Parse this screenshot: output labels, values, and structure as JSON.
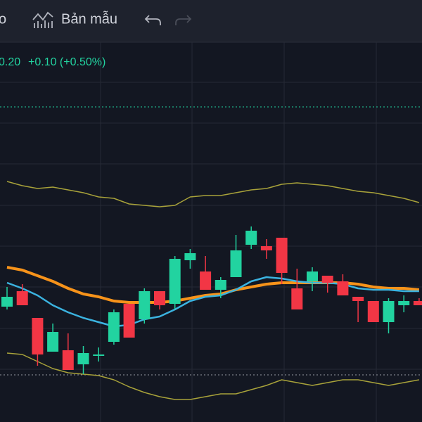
{
  "toolbar": {
    "partial_label": "o",
    "template": "Bản mẫu"
  },
  "legend": {
    "price": "0.20",
    "change": "+0.10 (+0.50%)"
  },
  "chart_data": {
    "type": "candlestick",
    "ylim": [
      19,
      21.7
    ],
    "up_color": "#22d3a0",
    "down_color": "#f23645",
    "open": [
      19.82,
      19.93,
      19.74,
      19.5,
      19.51,
      19.41,
      19.47,
      19.57,
      19.84,
      19.73,
      19.93,
      19.84,
      20.15,
      20.07,
      19.94,
      20.03,
      20.26,
      20.25,
      20.31,
      19.95,
      20.0,
      20.04,
      20.0,
      19.89,
      19.86,
      19.71,
      19.83,
      19.86
    ],
    "high": [
      19.96,
      19.98,
      19.74,
      19.7,
      19.63,
      19.54,
      19.53,
      19.8,
      19.84,
      19.95,
      19.93,
      20.18,
      20.23,
      20.18,
      20.03,
      20.33,
      20.39,
      20.3,
      20.31,
      20.09,
      20.1,
      20.04,
      20.05,
      19.89,
      19.86,
      19.88,
      19.9,
      19.88
    ],
    "low": [
      19.8,
      19.83,
      19.4,
      19.5,
      19.37,
      19.34,
      19.43,
      19.55,
      19.6,
      19.7,
      19.8,
      19.8,
      20.09,
      19.94,
      19.88,
      20.03,
      20.23,
      20.16,
      19.98,
      19.8,
      19.93,
      19.92,
      19.9,
      19.71,
      19.71,
      19.63,
      19.78,
      19.83
    ],
    "close": [
      19.89,
      19.83,
      19.48,
      19.64,
      19.37,
      19.49,
      19.48,
      19.78,
      19.6,
      19.93,
      19.83,
      20.16,
      20.2,
      19.94,
      20.01,
      20.22,
      20.36,
      20.22,
      20.06,
      19.8,
      20.07,
      19.99,
      19.9,
      19.86,
      19.71,
      19.86,
      19.86,
      19.83
    ],
    "series": [
      {
        "color": "#a8a23a",
        "width": 1.5,
        "values": [
          20.71,
          20.68,
          20.66,
          20.67,
          20.65,
          20.63,
          20.6,
          20.59,
          20.55,
          20.54,
          20.53,
          20.54,
          20.6,
          20.61,
          20.61,
          20.63,
          20.65,
          20.66,
          20.69,
          20.7,
          20.69,
          20.68,
          20.66,
          20.64,
          20.63,
          20.61,
          20.59,
          20.56
        ]
      },
      {
        "color": "#a8a23a",
        "width": 1.5,
        "values": [
          19.49,
          19.48,
          19.43,
          19.38,
          19.35,
          19.34,
          19.33,
          19.3,
          19.25,
          19.21,
          19.18,
          19.16,
          19.16,
          19.18,
          19.2,
          19.2,
          19.23,
          19.26,
          19.3,
          19.28,
          19.26,
          19.28,
          19.3,
          19.3,
          19.28,
          19.26,
          19.28,
          19.3
        ]
      },
      {
        "color": "#f7931a",
        "width": 4,
        "values": [
          20.1,
          20.08,
          20.04,
          20.0,
          19.95,
          19.91,
          19.89,
          19.86,
          19.85,
          19.85,
          19.85,
          19.86,
          19.88,
          19.9,
          19.91,
          19.94,
          19.96,
          19.98,
          19.99,
          19.99,
          19.99,
          19.99,
          19.99,
          19.98,
          19.96,
          19.95,
          19.95,
          19.94
        ]
      },
      {
        "color": "#3bb3e0",
        "width": 2.5,
        "values": [
          19.99,
          19.95,
          19.9,
          19.83,
          19.78,
          19.74,
          19.71,
          19.68,
          19.69,
          19.73,
          19.75,
          19.8,
          19.86,
          19.89,
          19.9,
          19.94,
          20.0,
          20.03,
          20.02,
          20.0,
          19.99,
          19.99,
          19.98,
          19.95,
          19.94,
          19.94,
          19.93,
          19.93
        ]
      }
    ]
  }
}
